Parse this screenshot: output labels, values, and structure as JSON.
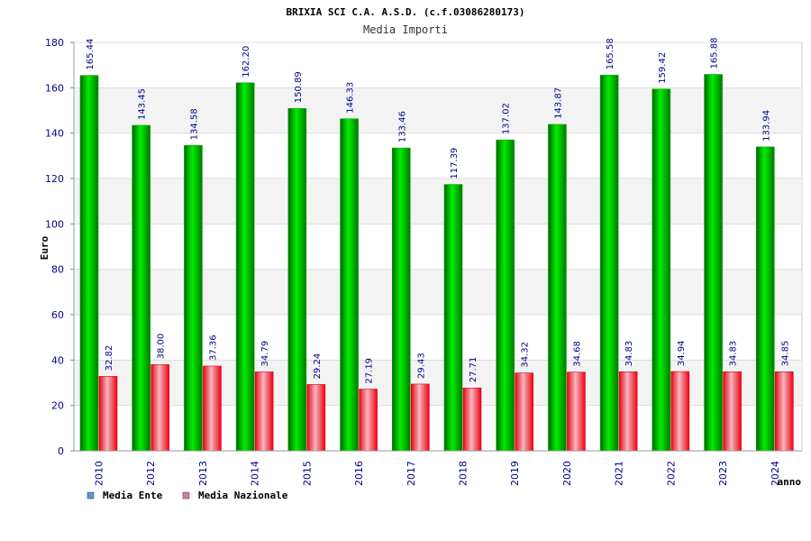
{
  "chart_data": {
    "type": "bar",
    "title": "BRIXIA SCI C.A. A.S.D. (c.f.03086280173)",
    "subtitle": "Media Importi",
    "xlabel": "anno",
    "ylabel": "Euro",
    "ylim": [
      0,
      180
    ],
    "ytick_step": 20,
    "grid": true,
    "categories": [
      "2010",
      "2012",
      "2013",
      "2014",
      "2015",
      "2016",
      "2017",
      "2018",
      "2019",
      "2020",
      "2021",
      "2022",
      "2023",
      "2024"
    ],
    "series": [
      {
        "name": "Media Ente",
        "color": "#00cc00",
        "legend_color": "#5b9bd5",
        "values": [
          165.44,
          143.45,
          134.58,
          162.2,
          150.89,
          146.33,
          133.46,
          117.39,
          137.02,
          143.87,
          165.58,
          159.42,
          165.88,
          133.94
        ],
        "labels": [
          "165.44",
          "143.45",
          "134.58",
          "162.20",
          "150.89",
          "146.33",
          "133.46",
          "117.39",
          "137.02",
          "143.87",
          "165.58",
          "159.42",
          "165.88",
          "133.94"
        ]
      },
      {
        "name": "Media Nazionale",
        "color": "#ee1122",
        "legend_color": "#dd77aa",
        "values": [
          32.82,
          38.0,
          37.36,
          34.79,
          29.24,
          27.19,
          29.43,
          27.71,
          34.32,
          34.68,
          34.83,
          34.94,
          34.83,
          34.85
        ],
        "labels": [
          "32.82",
          "38.00",
          "37.36",
          "34.79",
          "29.24",
          "27.19",
          "29.43",
          "27.71",
          "34.32",
          "34.68",
          "34.83",
          "34.94",
          "34.83",
          "34.85"
        ]
      }
    ],
    "legend_position": "bottom-left"
  }
}
